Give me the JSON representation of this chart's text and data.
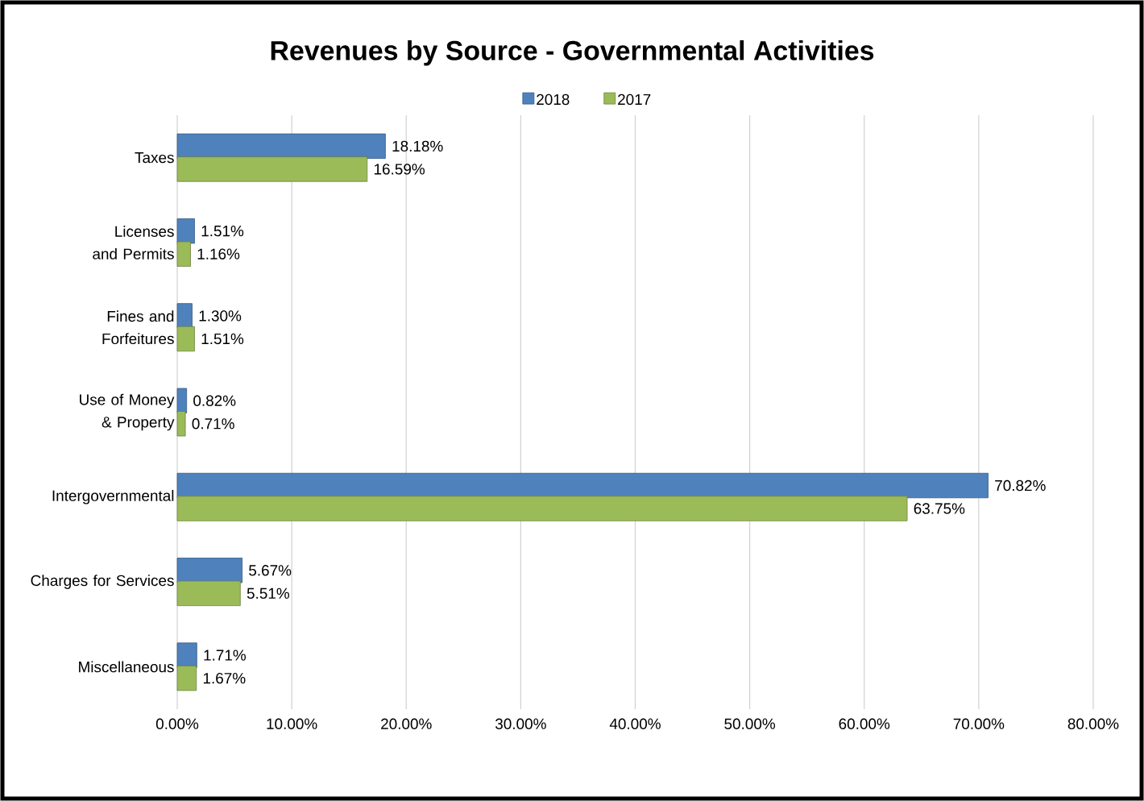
{
  "chart_data": {
    "type": "bar",
    "orientation": "horizontal",
    "title": "Revenues by Source - Governmental Activities",
    "categories": [
      "Taxes",
      "Licenses and Permits",
      "Fines and Forfeitures",
      "Use of Money & Property",
      "Intergovernmental",
      "Charges for Services",
      "Miscellaneous"
    ],
    "series": [
      {
        "name": "2018",
        "color": "#4f81bd",
        "values": [
          18.18,
          1.51,
          1.3,
          0.82,
          70.82,
          5.67,
          1.71
        ],
        "value_labels": [
          "18.18%",
          "1.51%",
          "1.30%",
          "0.82%",
          "70.82%",
          "5.67%",
          "1.71%"
        ]
      },
      {
        "name": "2017",
        "color": "#9bbb59",
        "values": [
          16.59,
          1.16,
          1.51,
          0.71,
          63.75,
          5.51,
          1.67
        ],
        "value_labels": [
          "16.59%",
          "1.16%",
          "1.51%",
          "0.71%",
          "63.75%",
          "5.51%",
          "1.67%"
        ]
      }
    ],
    "xlim": [
      0,
      80
    ],
    "xticks": [
      {
        "value": 0,
        "label": "0.00%"
      },
      {
        "value": 10,
        "label": "10.00%"
      },
      {
        "value": 20,
        "label": "20.00%"
      },
      {
        "value": 30,
        "label": "30.00%"
      },
      {
        "value": 40,
        "label": "40.00%"
      },
      {
        "value": 50,
        "label": "50.00%"
      },
      {
        "value": 60,
        "label": "60.00%"
      },
      {
        "value": 70,
        "label": "70.00%"
      },
      {
        "value": 80,
        "label": "80.00%"
      }
    ],
    "grid": "x",
    "legend": "top"
  }
}
